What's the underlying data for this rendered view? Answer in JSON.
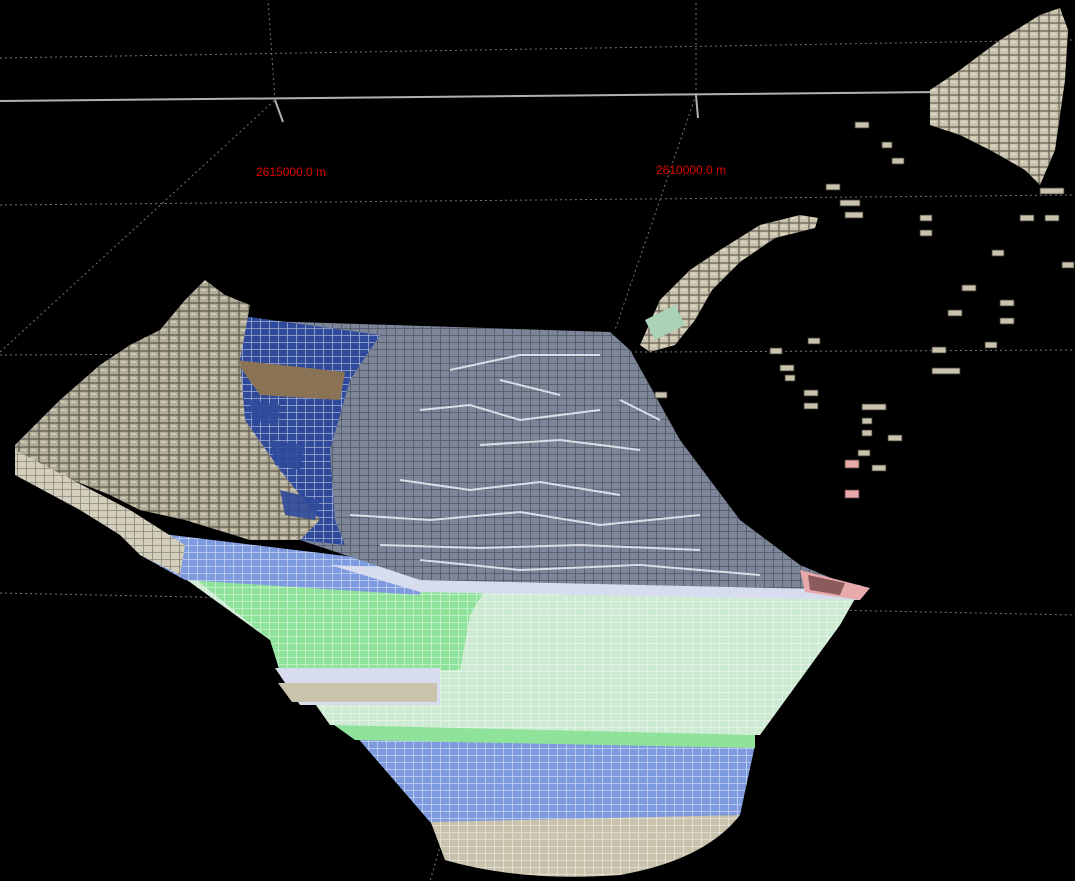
{
  "viewer": {
    "background": "#000000",
    "grid_color": "#8a8a8a",
    "axis_label_color": "#e00000",
    "axis_labels": [
      "2615000.0 m",
      "2610000.0 m"
    ]
  },
  "model": {
    "layers": [
      {
        "id": "surface-tan",
        "color": "#c9c2ad"
      },
      {
        "id": "dark-blue",
        "color": "#2f4a9a"
      },
      {
        "id": "brown",
        "color": "#8a7255"
      },
      {
        "id": "slate-gray",
        "color": "#7d8699"
      },
      {
        "id": "mid-blue",
        "color": "#7f9be0"
      },
      {
        "id": "green",
        "color": "#8fe29a"
      },
      {
        "id": "pale-green",
        "color": "#cdebd2"
      },
      {
        "id": "pink",
        "color": "#e8a9aa"
      }
    ]
  }
}
